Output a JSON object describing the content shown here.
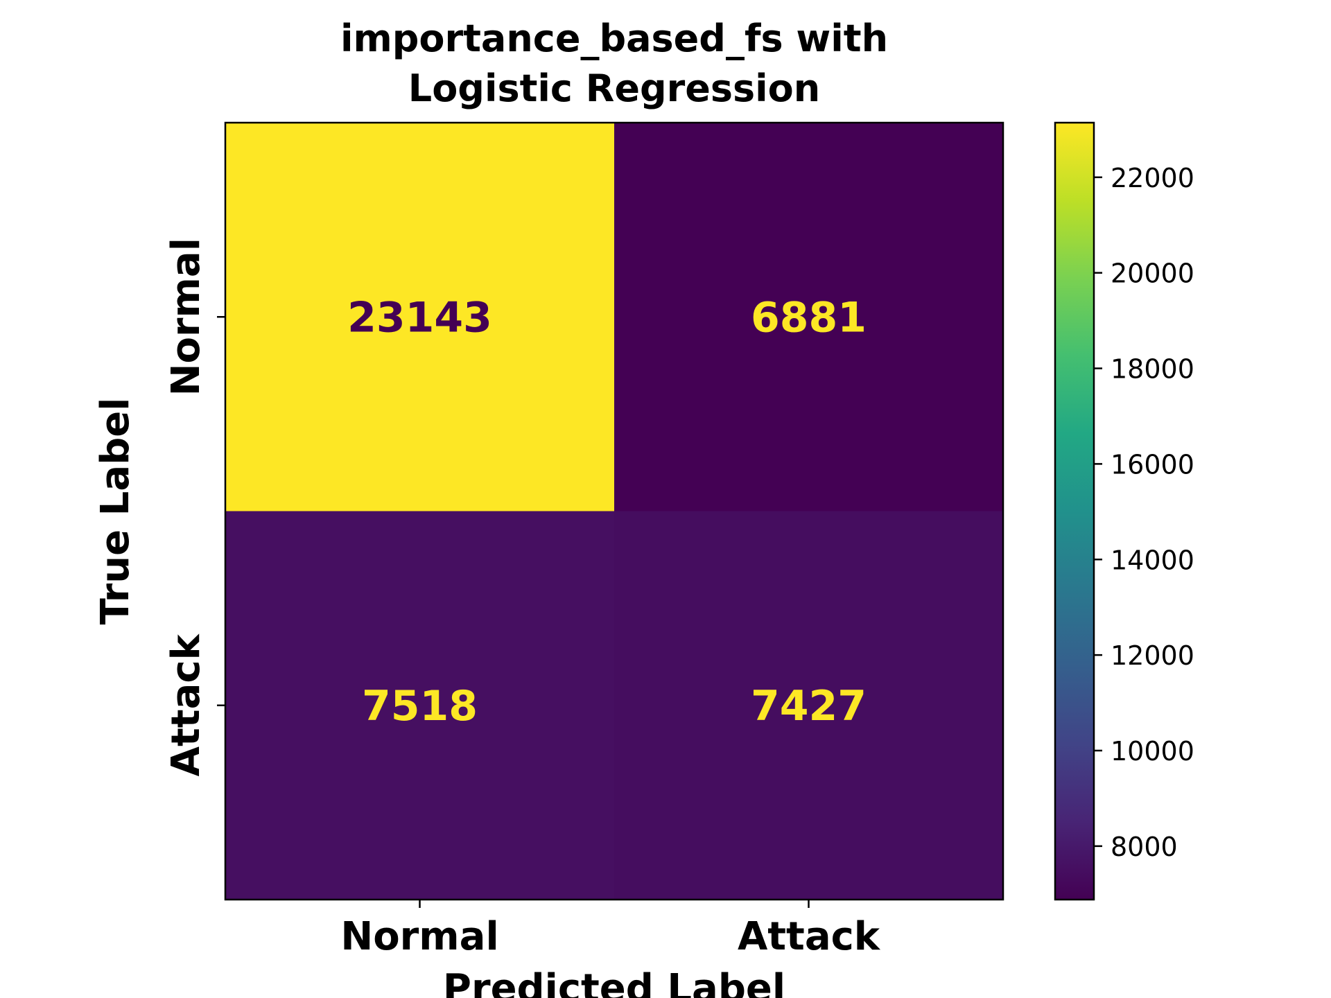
{
  "chart_data": {
    "type": "heatmap",
    "title": "importance_based_fs with\nLogistic Regression",
    "xlabel": "Predicted Label",
    "ylabel": "True Label",
    "x_categories": [
      "Normal",
      "Attack"
    ],
    "y_categories": [
      "Normal",
      "Attack"
    ],
    "values": [
      [
        23143,
        6881
      ],
      [
        7518,
        7427
      ]
    ],
    "colormap": "viridis",
    "colorbar": {
      "range": [
        6881,
        23143
      ],
      "ticks": [
        8000,
        10000,
        12000,
        14000,
        16000,
        18000,
        20000,
        22000
      ]
    },
    "grid": false,
    "colors": {
      "dark_text": "#440154",
      "light_text": "#fde725"
    }
  }
}
